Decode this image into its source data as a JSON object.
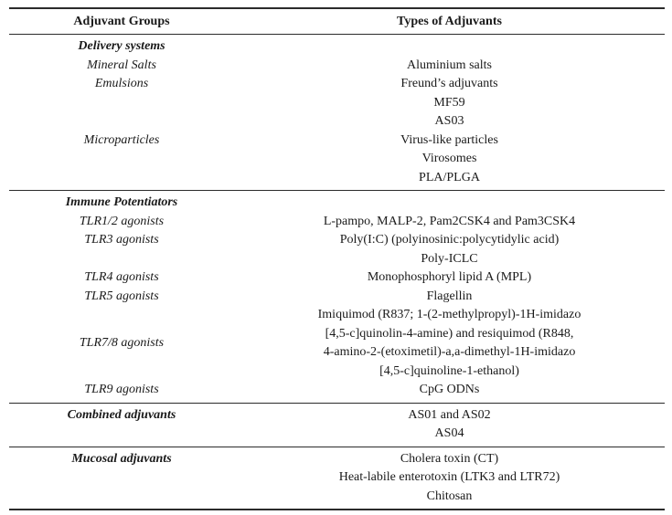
{
  "document": {
    "background": "#ffffff",
    "text_color": "#1a1a1a",
    "rule_color": "#2b2b2b"
  },
  "table": {
    "header": {
      "col1": "Adjuvant Groups",
      "col2": "Types of Adjuvants"
    },
    "sections": [
      {
        "id": "delivery-systems",
        "rows": [
          {
            "left": "Delivery systems",
            "left_style": "group",
            "right": ""
          },
          {
            "left": "Mineral Salts",
            "left_style": "sub",
            "right": "Aluminium salts"
          },
          {
            "left": "Emulsions",
            "left_style": "sub",
            "right": "Freund’s adjuvants"
          },
          {
            "left": "",
            "right": "MF59"
          },
          {
            "left": "",
            "right": "AS03"
          },
          {
            "left": "Microparticles",
            "left_style": "sub",
            "right": "Virus-like particles"
          },
          {
            "left": "",
            "right": "Virosomes"
          },
          {
            "left": "",
            "right": "PLA/PLGA"
          }
        ]
      },
      {
        "id": "immune-potentiators",
        "rows": [
          {
            "left": "Immune Potentiators",
            "left_style": "group",
            "right": ""
          },
          {
            "left": "TLR1/2 agonists",
            "left_style": "sub",
            "right": "L-pampo, MALP-2, Pam2CSK4 and Pam3CSK4"
          },
          {
            "left": "TLR3 agonists",
            "left_style": "sub",
            "right": "Poly(I:C) (polyinosinic:polycytidylic acid)"
          },
          {
            "left": "",
            "right": "Poly-ICLC"
          },
          {
            "left": "TLR4 agonists",
            "left_style": "sub",
            "right": "Monophosphoryl lipid A (MPL)"
          },
          {
            "left": "TLR5 agonists",
            "left_style": "sub",
            "right": "Flagellin"
          },
          {
            "left": "TLR7/8 agonists",
            "left_style": "sub",
            "right_lines": [
              "Imiquimod (R837; 1-(2-methylpropyl)-1H-imidazo",
              "[4,5-c]quinolin-4-amine) and resiquimod (R848,",
              "4-amino-2-(etoximetil)-a,a-dimethyl-1H-imidazo",
              "[4,5-c]quinoline-1-ethanol)"
            ]
          },
          {
            "left": "TLR9 agonists",
            "left_style": "sub",
            "right": "CpG ODNs"
          }
        ]
      },
      {
        "id": "combined-adjuvants",
        "rows": [
          {
            "left": "Combined adjuvants",
            "left_style": "group",
            "right": "AS01 and AS02"
          },
          {
            "left": "",
            "right": "AS04"
          }
        ]
      },
      {
        "id": "mucosal-adjuvants",
        "rows": [
          {
            "left": "Mucosal adjuvants",
            "left_style": "group",
            "right": "Cholera toxin (CT)"
          },
          {
            "left": "",
            "right": "Heat-labile enterotoxin (LTK3 and LTR72)"
          },
          {
            "left": "",
            "right": "Chitosan"
          }
        ]
      }
    ]
  }
}
